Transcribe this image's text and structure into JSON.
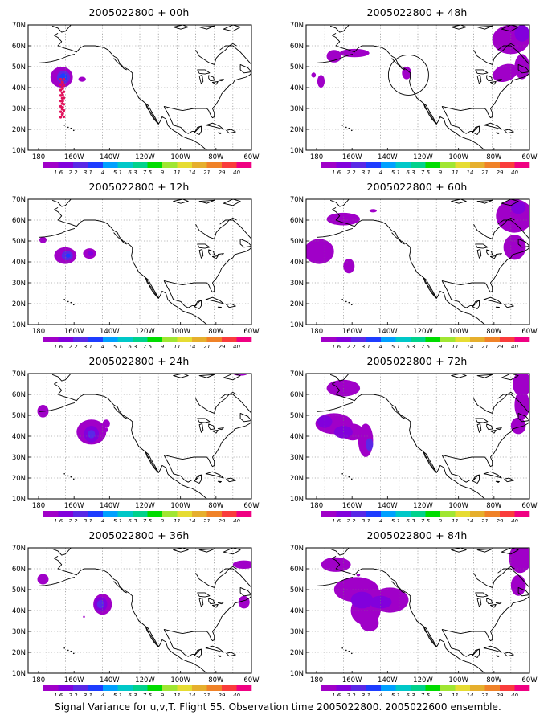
{
  "panels": [
    {
      "title": "2005022800 + 00h"
    },
    {
      "title": "2005022800 + 48h"
    },
    {
      "title": "2005022800 + 12h"
    },
    {
      "title": "2005022800 + 60h"
    },
    {
      "title": "2005022800 + 24h"
    },
    {
      "title": "2005022800 + 72h"
    },
    {
      "title": "2005022800 + 36h"
    },
    {
      "title": "2005022800 + 84h"
    }
  ],
  "lat_labels": [
    "70N",
    "60N",
    "50N",
    "40N",
    "30N",
    "20N",
    "10N"
  ],
  "lon_labels": [
    "180",
    "160W",
    "140W",
    "120W",
    "100W",
    "80W",
    "60W"
  ],
  "colorbar": {
    "labels": [
      "1.6",
      "2.2",
      "3.1",
      "4",
      "5.1",
      "6.3",
      "7.5",
      "9",
      "11",
      "14",
      "21",
      "29",
      "40"
    ],
    "colors": [
      "#a000c8",
      "#8200dc",
      "#5a28e6",
      "#1e3cff",
      "#00a0ff",
      "#00c8c8",
      "#00d28c",
      "#00dc00",
      "#a0e632",
      "#e6dc32",
      "#e6af2d",
      "#f08228",
      "#fa3c3c",
      "#f00082"
    ]
  },
  "footer": "Signal Variance for u,v,T. Flight 55. Observation time 2005022800. 2005022600 ensemble."
}
